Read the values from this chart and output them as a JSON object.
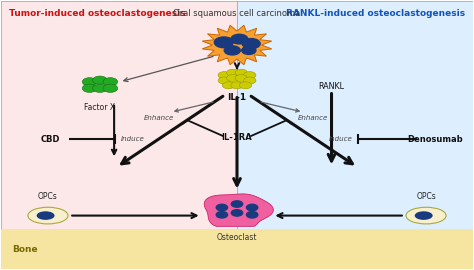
{
  "bg_left_color": "#fce8e8",
  "bg_right_color": "#ddeeff",
  "bg_bone_color": "#f5e5a0",
  "title_left": "Tumor-induced osteoclastogenesis",
  "title_right": "RANKL-induced osteoclastogenesis",
  "title_left_color": "#cc1111",
  "title_right_color": "#1155bb",
  "center_label": "Oral squamous cell carcinoma",
  "figsize": [
    4.74,
    2.7
  ],
  "dpi": 100,
  "border_color": "#aaaaaa"
}
